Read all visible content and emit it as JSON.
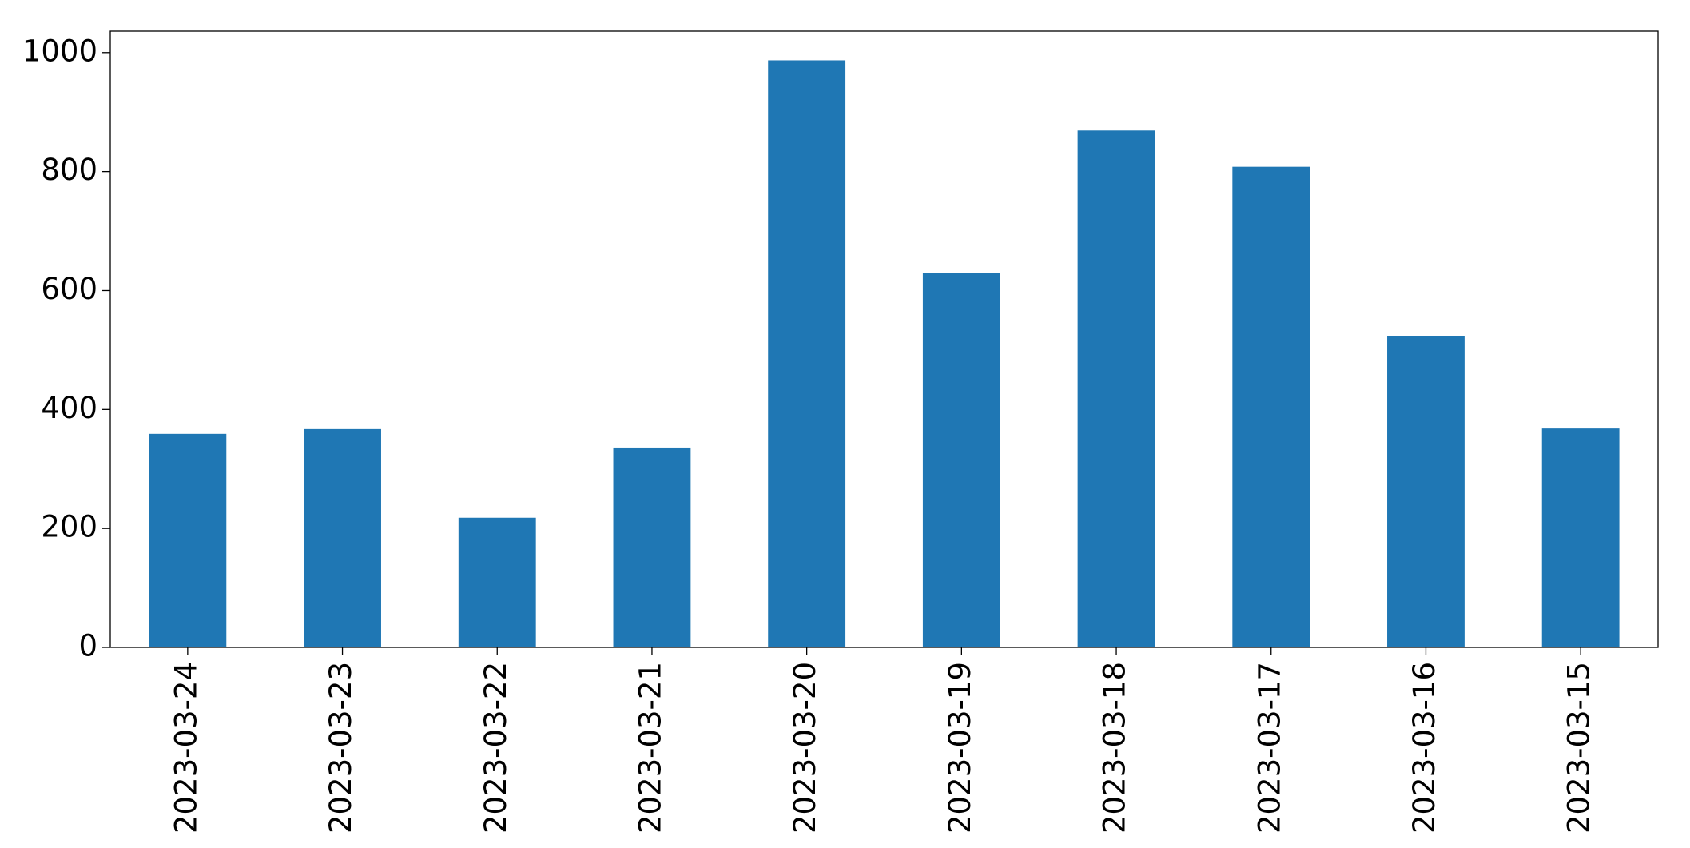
{
  "chart_data": {
    "type": "bar",
    "categories": [
      "2023-03-24",
      "2023-03-23",
      "2023-03-22",
      "2023-03-21",
      "2023-03-20",
      "2023-03-19",
      "2023-03-18",
      "2023-03-17",
      "2023-03-16",
      "2023-03-15"
    ],
    "values": [
      359,
      367,
      218,
      336,
      987,
      630,
      869,
      808,
      524,
      368
    ],
    "color": "#1f77b4",
    "ylim": [
      0,
      1036
    ],
    "yticks": [
      0,
      200,
      400,
      600,
      800,
      1000
    ],
    "grid": false
  }
}
